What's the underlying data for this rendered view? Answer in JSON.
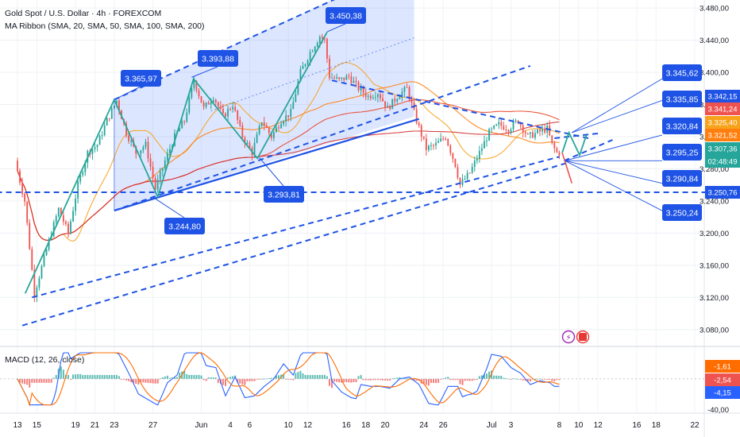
{
  "header": {
    "title": "Gold Spot / U.S. Dollar · 4h · FOREXCOM",
    "ma_ribbon": "MA Ribbon (SMA, 20, SMA, 50, SMA, 100, SMA, 200)",
    "macd": "MACD (12, 26, close)"
  },
  "colors": {
    "bull": "#26a69a",
    "bear": "#ef5350",
    "annotation": "#1e53e5",
    "ma20": "#f7a21b",
    "ma50": "#ff7f0e",
    "ma100": "#e8472b",
    "ma200": "#d32f2f",
    "macd_line": "#2962ff",
    "signal_line": "#ff6d00"
  },
  "chart_data": [
    {
      "type": "candlestick",
      "symbol": "Gold Spot / U.S. Dollar",
      "interval": "4h",
      "ylim": [
        3060,
        3490
      ],
      "y_ticks": [
        "3.480,00",
        "3.440,00",
        "3.400,00",
        "3.360,00",
        "3.320,00",
        "3.280,00",
        "3.240,00",
        "3.200,00",
        "3.160,00",
        "3.120,00",
        "3.080,00"
      ],
      "y_tick_values": [
        3480,
        3440,
        3400,
        3360,
        3320,
        3280,
        3240,
        3200,
        3160,
        3120,
        3080
      ],
      "x_ticks": [
        "13",
        "15",
        "19",
        "21",
        "23",
        "27",
        "Jun",
        "4",
        "6",
        "10",
        "12",
        "16",
        "18",
        "20",
        "24",
        "26",
        "Jul",
        "3",
        "8",
        "10",
        "12",
        "16",
        "18",
        "22"
      ],
      "x_tick_days": [
        13,
        15,
        19,
        21,
        23,
        27,
        32,
        35,
        37,
        41,
        43,
        47,
        49,
        51,
        55,
        57,
        62,
        64,
        69,
        71,
        73,
        77,
        79,
        83
      ],
      "path_points": [
        [
          13,
          3290
        ],
        [
          14,
          3240
        ],
        [
          15,
          3125
        ],
        [
          16.5,
          3190
        ],
        [
          17.5,
          3230
        ],
        [
          18.5,
          3200
        ],
        [
          19.5,
          3260
        ],
        [
          20.5,
          3300
        ],
        [
          21.5,
          3310
        ],
        [
          22.5,
          3340
        ],
        [
          23.5,
          3365
        ],
        [
          24.5,
          3325
        ],
        [
          25.5,
          3300
        ],
        [
          26.5,
          3310
        ],
        [
          27.5,
          3255
        ],
        [
          28.5,
          3290
        ],
        [
          29.5,
          3320
        ],
        [
          30.5,
          3340
        ],
        [
          31.5,
          3390
        ],
        [
          32.5,
          3355
        ],
        [
          33.5,
          3370
        ],
        [
          34.5,
          3345
        ],
        [
          35.5,
          3360
        ],
        [
          36.5,
          3320
        ],
        [
          37.5,
          3300
        ],
        [
          38.5,
          3340
        ],
        [
          39.5,
          3320
        ],
        [
          40.5,
          3340
        ],
        [
          41.5,
          3350
        ],
        [
          42.5,
          3400
        ],
        [
          43.5,
          3425
        ],
        [
          44.5,
          3445
        ],
        [
          45,
          3440
        ],
        [
          45.5,
          3395
        ],
        [
          46.5,
          3390
        ],
        [
          47.5,
          3395
        ],
        [
          48.5,
          3380
        ],
        [
          49.5,
          3370
        ],
        [
          50.5,
          3375
        ],
        [
          51.5,
          3355
        ],
        [
          52.5,
          3370
        ],
        [
          53.5,
          3380
        ],
        [
          54.5,
          3340
        ],
        [
          55.5,
          3305
        ],
        [
          56.5,
          3310
        ],
        [
          57.5,
          3320
        ],
        [
          58.5,
          3285
        ],
        [
          59,
          3260
        ],
        [
          60,
          3275
        ],
        [
          61,
          3300
        ],
        [
          62,
          3325
        ],
        [
          63,
          3335
        ],
        [
          64,
          3330
        ],
        [
          65,
          3340
        ],
        [
          66,
          3320
        ],
        [
          67,
          3325
        ],
        [
          68,
          3330
        ],
        [
          68.5,
          3310
        ],
        [
          69,
          3300
        ]
      ],
      "callouts": [
        {
          "text": "3.365,97",
          "day": 23,
          "price": 3365.97,
          "side": "above"
        },
        {
          "text": "3.393,88",
          "day": 31,
          "price": 3393.88,
          "side": "above"
        },
        {
          "text": "3.450,38",
          "day": 45,
          "price": 3450.38,
          "side": "above"
        },
        {
          "text": "3.244,80",
          "day": 27,
          "price": 3244.8,
          "side": "below"
        },
        {
          "text": "3.293,81",
          "day": 38,
          "price": 3293.81,
          "side": "below"
        }
      ],
      "projection_labels": [
        "3.345,62",
        "3.335,85",
        "3.320,84",
        "3.295,25",
        "3.290,84",
        "3.250,24"
      ],
      "support_level": {
        "value": 3250.76,
        "label": "3.250,76"
      },
      "price_scale_tags": [
        {
          "text": "3.342,15",
          "value": 3342.15,
          "color": "#1e53e5"
        },
        {
          "text": "3.341,24",
          "value": 3341.24,
          "color": "#ef5350"
        },
        {
          "text": "3.325,40",
          "value": 3325.4,
          "color": "#f7a21b"
        },
        {
          "text": "3.321,52",
          "value": 3321.52,
          "color": "#ff7f0e"
        },
        {
          "text": "3.307,36",
          "value": 3307.36,
          "color": "#26a69a"
        },
        {
          "text": "02:48:49",
          "value": 3298,
          "color": "#26a69a"
        }
      ]
    },
    {
      "type": "macd",
      "params": "MACD (12, 26, close)",
      "ylim": [
        -50,
        45
      ],
      "y_ticks": [
        "-40,00"
      ],
      "values": {
        "histogram": -1.61,
        "signal": -2.54,
        "macd": -4.15
      },
      "value_labels": [
        "-1,61",
        "-2,54",
        "-4,15"
      ]
    }
  ]
}
